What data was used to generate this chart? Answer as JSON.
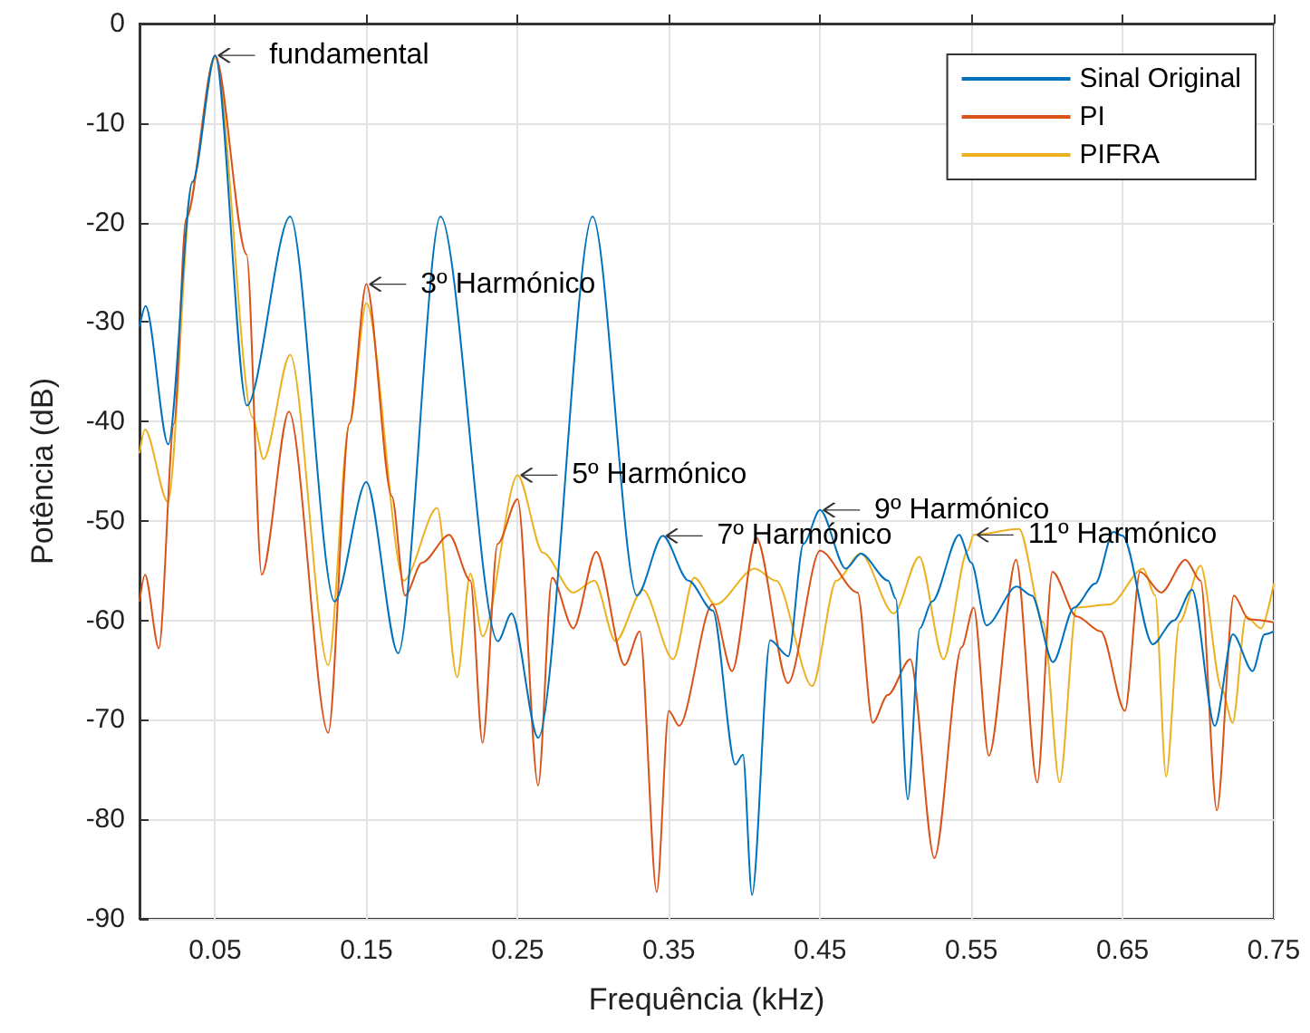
{
  "chart_data": {
    "type": "line",
    "xlabel": "Frequência (kHz)",
    "ylabel": "Potência (dB)",
    "xlim": [
      0,
      0.75
    ],
    "xticks": [
      0.05,
      0.15,
      0.25,
      0.35,
      0.45,
      0.55,
      0.65,
      0.75
    ],
    "ylim": [
      -90,
      0
    ],
    "yticks": [
      -90,
      -80,
      -70,
      -60,
      -50,
      -40,
      -30,
      -20,
      -10,
      0
    ],
    "grid": true,
    "legend": "top right",
    "marker": "none",
    "line_style": "solid",
    "series": [
      {
        "name": "Sinal Original",
        "color": "#0072bd",
        "x": [
          0,
          0.004,
          0.019,
          0.035,
          0.05,
          0.071,
          0.0996,
          0.129,
          0.15,
          0.171,
          0.199,
          0.237,
          0.246,
          0.2636,
          0.2996,
          0.329,
          0.346,
          0.363,
          0.379,
          0.394,
          0.399,
          0.405,
          0.417,
          0.429,
          0.439,
          0.45,
          0.467,
          0.477,
          0.495,
          0.5,
          0.508,
          0.516,
          0.524,
          0.542,
          0.55,
          0.56,
          0.58,
          0.59,
          0.604,
          0.618,
          0.632,
          0.644,
          0.65,
          0.67,
          0.684,
          0.696,
          0.711,
          0.723,
          0.736,
          0.744,
          0.75
        ],
        "values": [
          -30.5,
          -28.4,
          -42.3,
          -15.9,
          -3.2,
          -38.4,
          -19.4,
          -58.1,
          -46.1,
          -63.3,
          -19.4,
          -62.1,
          -59.3,
          -71.8,
          -19.4,
          -57.5,
          -51.5,
          -56,
          -59,
          -74.5,
          -73.5,
          -87.6,
          -62,
          -63.6,
          -52.3,
          -48.9,
          -54.8,
          -53.3,
          -56,
          -57.8,
          -78,
          -60.8,
          -58.1,
          -51.4,
          -54.2,
          -60.5,
          -56.6,
          -57.5,
          -64.2,
          -58.7,
          -56.3,
          -51.1,
          -51.5,
          -62.4,
          -60,
          -56.9,
          -70.6,
          -61.4,
          -65.1,
          -61.4,
          -61.1
        ]
      },
      {
        "name": "PI",
        "color": "#d95319",
        "x": [
          0,
          0.0036,
          0.0128,
          0.0228,
          0.0308,
          0.05,
          0.0708,
          0.0808,
          0.0988,
          0.1248,
          0.1388,
          0.15,
          0.1668,
          0.1756,
          0.1868,
          0.2048,
          0.2188,
          0.2268,
          0.2368,
          0.25,
          0.2636,
          0.2728,
          0.2868,
          0.302,
          0.3208,
          0.3308,
          0.342,
          0.35,
          0.3568,
          0.3788,
          0.3918,
          0.4078,
          0.4288,
          0.45,
          0.4748,
          0.4848,
          0.4948,
          0.5096,
          0.5256,
          0.5436,
          0.5516,
          0.5616,
          0.5796,
          0.5936,
          0.6036,
          0.6196,
          0.6356,
          0.6516,
          0.6616,
          0.6756,
          0.6916,
          0.7016,
          0.7124,
          0.7236,
          0.7336,
          0.75
        ],
        "values": [
          -58.1,
          -55.4,
          -62.8,
          -40.2,
          -19.6,
          -3.2,
          -23.2,
          -55.4,
          -39,
          -71.3,
          -40.2,
          -26.2,
          -47.5,
          -57.5,
          -54.2,
          -51.4,
          -56,
          -72.3,
          -52.3,
          -47.8,
          -76.6,
          -55.7,
          -60.8,
          -53.1,
          -64.5,
          -61.1,
          -87.3,
          -69.1,
          -70.6,
          -58.4,
          -65.1,
          -51.7,
          -66.3,
          -53,
          -57.2,
          -70.3,
          -67.5,
          -63.9,
          -83.9,
          -62.7,
          -58.7,
          -73.6,
          -53.9,
          -76.3,
          -55.1,
          -59.6,
          -61.1,
          -69.1,
          -55.1,
          -57.2,
          -53.9,
          -56,
          -79.1,
          -57.5,
          -59.9,
          -60.2
        ]
      },
      {
        "name": "PIFRA",
        "color": "#edb120",
        "x": [
          0,
          0.0036,
          0.0188,
          0.035,
          0.05,
          0.0748,
          0.082,
          0.0996,
          0.1248,
          0.1388,
          0.15,
          0.1748,
          0.1968,
          0.21,
          0.2188,
          0.2268,
          0.25,
          0.2668,
          0.2868,
          0.3008,
          0.3148,
          0.3328,
          0.3528,
          0.3668,
          0.3808,
          0.4068,
          0.4208,
          0.4448,
          0.4608,
          0.4768,
          0.4988,
          0.5156,
          0.5316,
          0.5476,
          0.5516,
          0.5816,
          0.5976,
          0.6084,
          0.6196,
          0.6416,
          0.6636,
          0.6716,
          0.6788,
          0.6876,
          0.7016,
          0.7156,
          0.7228,
          0.7316,
          0.7416,
          0.75
        ],
        "values": [
          -43.2,
          -40.8,
          -48.1,
          -16,
          -3.4,
          -39.6,
          -43.8,
          -33.3,
          -64.5,
          -40.2,
          -28.1,
          -56,
          -48.7,
          -65.7,
          -55.3,
          -61.6,
          -45.4,
          -53.2,
          -57.2,
          -56,
          -62.1,
          -56.9,
          -63.9,
          -55.7,
          -58.4,
          -54.8,
          -56,
          -66.6,
          -56,
          -53.3,
          -59.3,
          -53.6,
          -63.9,
          -53,
          -51.4,
          -50.8,
          -60.2,
          -76.3,
          -58.7,
          -58.4,
          -54.8,
          -57.5,
          -75.7,
          -60.2,
          -54.5,
          -66.9,
          -70.3,
          -59.6,
          -60.8,
          -56.3
        ]
      }
    ],
    "annotations": [
      {
        "text": "fundamental",
        "x": 0.05,
        "y": -3.2
      },
      {
        "text": "3º Harmónico",
        "x": 0.15,
        "y": -26.2
      },
      {
        "text": "5º Harmónico",
        "x": 0.25,
        "y": -45.4
      },
      {
        "text": "7º Harmónico",
        "x": 0.346,
        "y": -51.5
      },
      {
        "text": "9º Harmónico",
        "x": 0.45,
        "y": -48.9
      },
      {
        "text": "11º Harmónico",
        "x": 0.5516,
        "y": -51.4
      }
    ]
  }
}
